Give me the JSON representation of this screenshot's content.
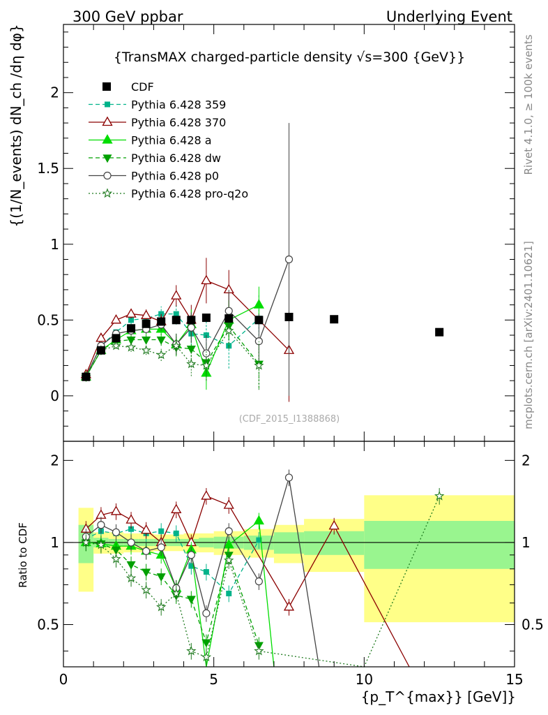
{
  "header": {
    "left_title": "300 GeV ppbar",
    "right_title": "Underlying Event"
  },
  "side_labels": {
    "rivet": "Rivet 4.1.0, ≥ 100k events",
    "mcplots": "mcplots.cern.ch [arXiv:2401.10621]"
  },
  "chart_data": [
    {
      "type": "line",
      "panel": "main",
      "title": "{TransMAX charged-particle density √s=300 {GeV}}",
      "ylabel": "{(1/N_events) dN_ch /dη dφ}",
      "xlim": [
        0,
        15
      ],
      "ylim": [
        -0.3,
        2.45
      ],
      "yticks": [
        0,
        0.5,
        1,
        1.5,
        2
      ],
      "ytick_labels": [
        "0",
        "0.5",
        "1",
        "1.5",
        "2"
      ],
      "watermark": "(CDF_2015_I1388868)",
      "legend_position": "top-left",
      "legend": [
        "CDF",
        "Pythia 6.428 359",
        "Pythia 6.428 370",
        "Pythia 6.428 a",
        "Pythia 6.428 dw",
        "Pythia 6.428 p0",
        "Pythia 6.428 pro-q2o"
      ],
      "data": {
        "name": "CDF",
        "x": [
          0.75,
          1.25,
          1.75,
          2.25,
          2.75,
          3.25,
          3.75,
          4.25,
          4.75,
          5.5,
          6.5,
          7.5,
          9.0,
          12.5
        ],
        "y": [
          0.125,
          0.3,
          0.38,
          0.445,
          0.475,
          0.49,
          0.5,
          0.5,
          0.515,
          0.51,
          0.5,
          0.52,
          0.505,
          0.42
        ]
      },
      "series": [
        {
          "name": "Pythia 6.428 359",
          "color": "#00b38a",
          "x": [
            0.75,
            1.25,
            1.75,
            2.25,
            2.75,
            3.25,
            3.75,
            4.25,
            4.75,
            5.5,
            6.5
          ],
          "y": [
            0.13,
            0.33,
            0.42,
            0.5,
            0.51,
            0.54,
            0.54,
            0.41,
            0.4,
            0.33,
            0.51
          ],
          "err": [
            0.01,
            0.02,
            0.02,
            0.03,
            0.04,
            0.05,
            0.07,
            0.1,
            0.13,
            0.15,
            0.16
          ]
        },
        {
          "name": "Pythia 6.428 370",
          "color": "#8b0000",
          "x": [
            0.75,
            1.25,
            1.75,
            2.25,
            2.75,
            3.25,
            3.75,
            4.25,
            4.75,
            5.5,
            7.5
          ],
          "y": [
            0.14,
            0.38,
            0.5,
            0.54,
            0.53,
            0.49,
            0.66,
            0.5,
            0.76,
            0.7,
            0.3
          ],
          "err": [
            0.01,
            0.02,
            0.02,
            0.03,
            0.04,
            0.05,
            0.07,
            0.1,
            0.15,
            0.13,
            0.34
          ]
        },
        {
          "name": "Pythia 6.428 a",
          "color": "#00dd00",
          "x": [
            0.75,
            1.25,
            1.75,
            2.25,
            2.75,
            3.25,
            3.75,
            4.25,
            4.75,
            5.5,
            6.5
          ],
          "y": [
            0.125,
            0.3,
            0.37,
            0.43,
            0.44,
            0.44,
            0.34,
            0.47,
            0.15,
            0.5,
            0.6
          ],
          "err": [
            0.01,
            0.02,
            0.02,
            0.03,
            0.04,
            0.05,
            0.07,
            0.1,
            0.11,
            0.13,
            0.12
          ]
        },
        {
          "name": "Pythia 6.428 dw",
          "color": "#00a000",
          "x": [
            0.75,
            1.25,
            1.75,
            2.25,
            2.75,
            3.25,
            3.75,
            4.25,
            4.75,
            5.5,
            6.5
          ],
          "y": [
            0.125,
            0.3,
            0.36,
            0.37,
            0.37,
            0.37,
            0.32,
            0.31,
            0.22,
            0.46,
            0.21
          ],
          "err": [
            0.01,
            0.02,
            0.02,
            0.03,
            0.03,
            0.04,
            0.06,
            0.1,
            0.12,
            0.14,
            0.16
          ]
        },
        {
          "name": "Pythia 6.428 p0",
          "color": "#444444",
          "x": [
            0.75,
            1.25,
            1.75,
            2.25,
            2.75,
            3.25,
            3.75,
            4.25,
            4.75,
            5.5,
            6.5,
            7.5
          ],
          "y": [
            0.13,
            0.33,
            0.41,
            0.43,
            0.44,
            0.47,
            0.34,
            0.45,
            0.28,
            0.56,
            0.36,
            0.9
          ],
          "err": [
            0.01,
            0.02,
            0.02,
            0.03,
            0.03,
            0.04,
            0.07,
            0.1,
            0.12,
            0.14,
            0.18,
            0.9
          ]
        },
        {
          "name": "Pythia 6.428 pro-q2o",
          "color": "#1f7a1f",
          "x": [
            0.75,
            1.25,
            1.75,
            2.25,
            2.75,
            3.25,
            3.75,
            4.25,
            4.75,
            5.5,
            6.5
          ],
          "y": [
            0.125,
            0.3,
            0.33,
            0.32,
            0.3,
            0.27,
            0.33,
            0.21,
            0.2,
            0.43,
            0.2
          ],
          "err": [
            0.01,
            0.02,
            0.02,
            0.03,
            0.03,
            0.04,
            0.06,
            0.08,
            0.1,
            0.12,
            0.16
          ]
        }
      ]
    },
    {
      "type": "line",
      "panel": "ratio",
      "ylabel": "Ratio to CDF",
      "xlabel": "{p_T^{max}} [GeV]}",
      "xlim": [
        0,
        15
      ],
      "ylim": [
        0.35,
        2.35
      ],
      "xticks": [
        0,
        5,
        10,
        15
      ],
      "xtick_labels": [
        "0",
        "5",
        "10",
        "15"
      ],
      "yticks": [
        0.5,
        1,
        2
      ],
      "ytick_labels": [
        "0.5",
        "1",
        "2"
      ],
      "bins": [
        [
          0.5,
          1.0
        ],
        [
          1.0,
          1.5
        ],
        [
          1.5,
          2.0
        ],
        [
          2.0,
          2.5
        ],
        [
          2.5,
          3.0
        ],
        [
          3.0,
          3.5
        ],
        [
          3.5,
          4.0
        ],
        [
          4.0,
          4.5
        ],
        [
          4.5,
          5.0
        ],
        [
          5.0,
          6.0
        ],
        [
          6.0,
          7.0
        ],
        [
          7.0,
          8.0
        ],
        [
          8.0,
          10.0
        ],
        [
          10.0,
          15.0
        ]
      ],
      "stat_band": [
        0.16,
        0.04,
        0.03,
        0.03,
        0.03,
        0.03,
        0.03,
        0.03,
        0.04,
        0.05,
        0.06,
        0.09,
        0.1,
        0.2
      ],
      "total_band": [
        0.34,
        0.09,
        0.09,
        0.08,
        0.08,
        0.07,
        0.07,
        0.08,
        0.08,
        0.1,
        0.12,
        0.16,
        0.22,
        0.49
      ],
      "series": [
        {
          "name": "Pythia 6.428 359",
          "x": [
            0.75,
            1.25,
            1.75,
            2.25,
            2.75,
            3.25,
            3.75,
            4.25,
            4.75,
            5.5,
            6.5
          ],
          "y": [
            1.03,
            1.1,
            1.08,
            1.12,
            1.08,
            1.1,
            1.08,
            0.82,
            0.78,
            0.65,
            1.02
          ]
        },
        {
          "name": "Pythia 6.428 370",
          "x": [
            0.75,
            1.25,
            1.75,
            2.25,
            2.75,
            3.25,
            3.75,
            4.25,
            4.75,
            5.5,
            7.5,
            9.0,
            11.5
          ],
          "y": [
            1.12,
            1.26,
            1.3,
            1.21,
            1.11,
            1.0,
            1.32,
            1.0,
            1.48,
            1.37,
            0.58,
            1.15,
            0.35
          ]
        },
        {
          "name": "Pythia 6.428 a",
          "x": [
            0.75,
            1.25,
            1.75,
            2.25,
            2.75,
            3.25,
            3.75,
            4.25,
            4.75,
            5.5,
            6.5,
            7.0
          ],
          "y": [
            1.0,
            0.99,
            0.97,
            0.97,
            0.93,
            0.9,
            0.68,
            0.94,
            0.3,
            0.98,
            1.2,
            0.35
          ]
        },
        {
          "name": "Pythia 6.428 dw",
          "x": [
            0.75,
            1.25,
            1.75,
            2.25,
            2.75,
            3.25,
            3.75,
            4.25,
            4.75,
            5.5,
            6.5
          ],
          "y": [
            1.0,
            0.99,
            0.94,
            0.83,
            0.78,
            0.75,
            0.64,
            0.62,
            0.43,
            0.9,
            0.42
          ]
        },
        {
          "name": "Pythia 6.428 p0",
          "x": [
            0.75,
            1.25,
            1.75,
            2.25,
            2.75,
            3.25,
            3.75,
            4.25,
            4.75,
            5.5,
            6.5,
            7.5,
            8.5
          ],
          "y": [
            1.05,
            1.16,
            1.09,
            1.0,
            0.93,
            0.96,
            0.68,
            0.9,
            0.55,
            1.1,
            0.72,
            1.73,
            0.35
          ]
        },
        {
          "name": "Pythia 6.428 pro-q2o",
          "x": [
            0.75,
            1.25,
            1.75,
            2.25,
            2.75,
            3.25,
            3.75,
            4.25,
            4.75,
            5.5,
            6.5,
            10.0,
            12.5
          ],
          "y": [
            1.0,
            0.98,
            0.87,
            0.74,
            0.67,
            0.58,
            0.65,
            0.4,
            0.38,
            0.86,
            0.4,
            0.35,
            1.48
          ]
        }
      ]
    }
  ]
}
